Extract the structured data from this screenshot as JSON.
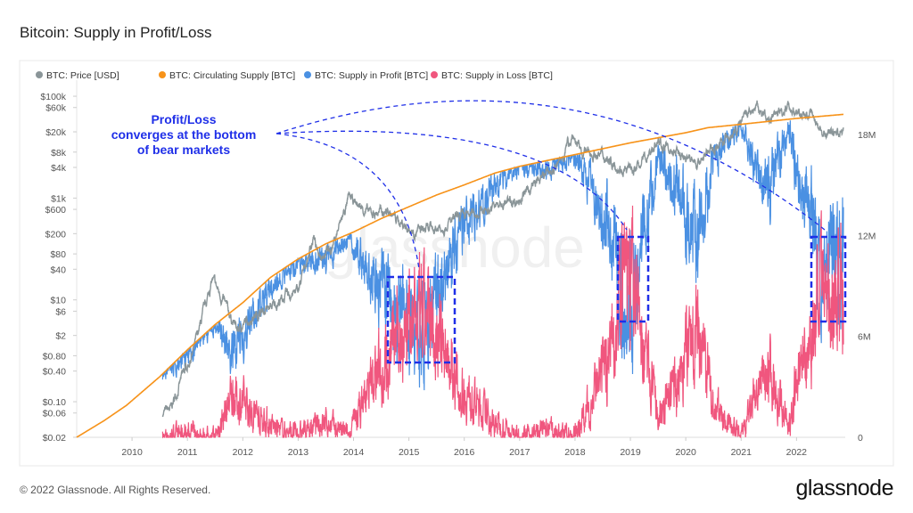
{
  "title": "Bitcoin: Supply in Profit/Loss",
  "footer": "© 2022 Glassnode. All Rights Reserved.",
  "logo": "glassnode",
  "watermark": "glassnode",
  "chart_data": {
    "type": "line",
    "title": "Bitcoin: Supply in Profit/Loss",
    "legend_position": "top-left",
    "legend": [
      {
        "name": "BTC: Price [USD]",
        "color": "#8a9598"
      },
      {
        "name": "BTC: Circulating Supply [BTC]",
        "color": "#f7931a"
      },
      {
        "name": "BTC: Supply in Profit [BTC]",
        "color": "#4a90e2"
      },
      {
        "name": "BTC: Supply in Loss [BTC]",
        "color": "#f0567e"
      }
    ],
    "x_ticks": [
      "2010",
      "2011",
      "2012",
      "2013",
      "2014",
      "2015",
      "2016",
      "2017",
      "2018",
      "2019",
      "2020",
      "2021",
      "2022"
    ],
    "xlim": [
      2009.0,
      2022.88
    ],
    "left_axis": {
      "scale": "log",
      "ylim": [
        0.02,
        150000
      ],
      "ticks": [
        {
          "v": 100000,
          "label": "$100k"
        },
        {
          "v": 60000,
          "label": "$60k"
        },
        {
          "v": 20000,
          "label": "$20k"
        },
        {
          "v": 8000,
          "label": "$8k"
        },
        {
          "v": 4000,
          "label": "$4k"
        },
        {
          "v": 1000,
          "label": "$1k"
        },
        {
          "v": 600,
          "label": "$600"
        },
        {
          "v": 200,
          "label": "$200"
        },
        {
          "v": 80,
          "label": "$80"
        },
        {
          "v": 40,
          "label": "$40"
        },
        {
          "v": 10,
          "label": "$10"
        },
        {
          "v": 6,
          "label": "$6"
        },
        {
          "v": 2,
          "label": "$2"
        },
        {
          "v": 0.8,
          "label": "$0.80"
        },
        {
          "v": 0.4,
          "label": "$0.40"
        },
        {
          "v": 0.1,
          "label": "$0.10"
        },
        {
          "v": 0.06,
          "label": "$0.06"
        },
        {
          "v": 0.02,
          "label": "$0.02"
        }
      ]
    },
    "right_axis": {
      "scale": "linear",
      "ylim": [
        0,
        20800000
      ],
      "ticks": [
        {
          "v": 0,
          "label": "0"
        },
        {
          "v": 6000000,
          "label": "6M"
        },
        {
          "v": 12000000,
          "label": "12M"
        },
        {
          "v": 18000000,
          "label": "18M"
        }
      ]
    },
    "series": [
      {
        "name": "BTC: Price [USD]",
        "axis": "left",
        "points": [
          [
            2010.55,
            0.06
          ],
          [
            2010.7,
            0.07
          ],
          [
            2010.9,
            0.3
          ],
          [
            2011.1,
            0.9
          ],
          [
            2011.45,
            25
          ],
          [
            2011.6,
            12
          ],
          [
            2011.9,
            2.5
          ],
          [
            2012.2,
            5
          ],
          [
            2012.5,
            7
          ],
          [
            2012.8,
            12
          ],
          [
            2013.0,
            15
          ],
          [
            2013.28,
            180
          ],
          [
            2013.35,
            80
          ],
          [
            2013.6,
            100
          ],
          [
            2013.92,
            1000
          ],
          [
            2014.1,
            700
          ],
          [
            2014.3,
            500
          ],
          [
            2014.6,
            550
          ],
          [
            2015.0,
            250
          ],
          [
            2015.1,
            220
          ],
          [
            2015.5,
            250
          ],
          [
            2015.9,
            400
          ],
          [
            2016.0,
            430
          ],
          [
            2016.5,
            650
          ],
          [
            2017.0,
            950
          ],
          [
            2017.4,
            2500
          ],
          [
            2017.7,
            4500
          ],
          [
            2017.96,
            18000
          ],
          [
            2018.1,
            8000
          ],
          [
            2018.5,
            7000
          ],
          [
            2018.9,
            3500
          ],
          [
            2019.1,
            3700
          ],
          [
            2019.48,
            12000
          ],
          [
            2019.8,
            8000
          ],
          [
            2020.2,
            5000
          ],
          [
            2020.5,
            9500
          ],
          [
            2020.9,
            19000
          ],
          [
            2021.0,
            33000
          ],
          [
            2021.28,
            60000
          ],
          [
            2021.5,
            33000
          ],
          [
            2021.85,
            66000
          ],
          [
            2022.0,
            45000
          ],
          [
            2022.3,
            40000
          ],
          [
            2022.45,
            20000
          ],
          [
            2022.85,
            19500
          ]
        ]
      },
      {
        "name": "BTC: Circulating Supply [BTC]",
        "axis": "right",
        "points": [
          [
            2009.0,
            0
          ],
          [
            2009.5,
            1000000
          ],
          [
            2009.9,
            1900000
          ],
          [
            2010.5,
            3600000
          ],
          [
            2011.0,
            5200000
          ],
          [
            2011.5,
            6700000
          ],
          [
            2012.0,
            8000000
          ],
          [
            2012.5,
            9500000
          ],
          [
            2013.0,
            10600000
          ],
          [
            2013.5,
            11500000
          ],
          [
            2014.0,
            12200000
          ],
          [
            2014.5,
            13000000
          ],
          [
            2015.0,
            13700000
          ],
          [
            2015.5,
            14400000
          ],
          [
            2016.0,
            15000000
          ],
          [
            2016.55,
            15700000
          ],
          [
            2017.0,
            16100000
          ],
          [
            2018.0,
            16800000
          ],
          [
            2019.0,
            17500000
          ],
          [
            2020.0,
            18100000
          ],
          [
            2020.4,
            18400000
          ],
          [
            2021.0,
            18600000
          ],
          [
            2022.0,
            18950000
          ],
          [
            2022.88,
            19200000
          ]
        ]
      },
      {
        "name": "BTC: Supply in Loss [BTC]",
        "axis": "right",
        "points": [
          [
            2010.55,
            0
          ],
          [
            2011.0,
            300000
          ],
          [
            2011.5,
            0
          ],
          [
            2011.8,
            2500000
          ],
          [
            2012.2,
            1500000
          ],
          [
            2012.6,
            500000
          ],
          [
            2013.0,
            200000
          ],
          [
            2013.5,
            900000
          ],
          [
            2013.9,
            100000
          ],
          [
            2014.3,
            3000000
          ],
          [
            2014.6,
            5000000
          ],
          [
            2015.0,
            7000000
          ],
          [
            2015.5,
            6500000
          ],
          [
            2015.9,
            3000000
          ],
          [
            2016.5,
            1000000
          ],
          [
            2017.0,
            0
          ],
          [
            2017.5,
            500000
          ],
          [
            2017.96,
            0
          ],
          [
            2018.5,
            3500000
          ],
          [
            2018.95,
            10000000
          ],
          [
            2019.1,
            8000000
          ],
          [
            2019.5,
            1000000
          ],
          [
            2019.9,
            4000000
          ],
          [
            2020.2,
            7000000
          ],
          [
            2020.5,
            2000000
          ],
          [
            2021.0,
            0
          ],
          [
            2021.5,
            4500000
          ],
          [
            2021.85,
            500000
          ],
          [
            2022.0,
            3000000
          ],
          [
            2022.4,
            8000000
          ],
          [
            2022.85,
            9000000
          ]
        ]
      },
      {
        "name": "BTC: Supply in Profit [BTC]",
        "axis": "right",
        "derived": "circulating supply minus supply in loss"
      }
    ],
    "annotations": [
      {
        "text_lines": [
          "Profit/Loss",
          "converges at the bottom",
          "of bear markets"
        ],
        "color": "#1f2fe8"
      }
    ]
  }
}
